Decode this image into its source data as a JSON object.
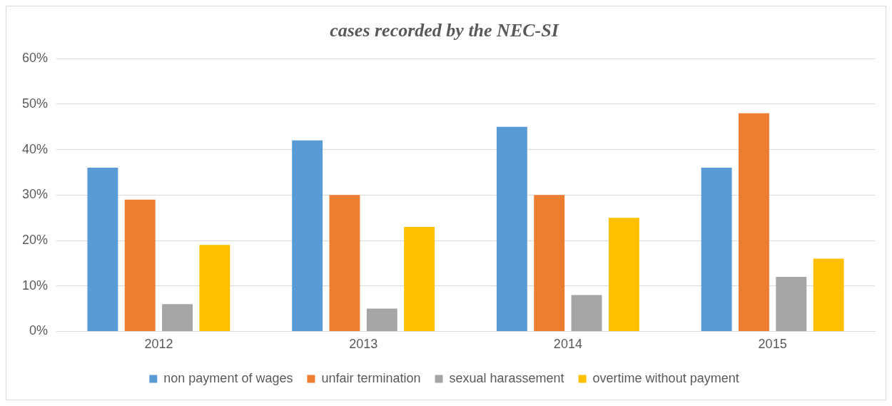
{
  "chart_data": {
    "type": "bar",
    "title": "cases recorded by the NEC-SI",
    "categories": [
      "2012",
      "2013",
      "2014",
      "2015"
    ],
    "series": [
      {
        "name": "non payment of wages",
        "color": "#5b9bd5",
        "values": [
          36,
          42,
          45,
          36
        ]
      },
      {
        "name": "unfair termination",
        "color": "#ed7d31",
        "values": [
          29,
          30,
          30,
          48
        ]
      },
      {
        "name": "sexual harassement",
        "color": "#a5a5a5",
        "values": [
          6,
          5,
          8,
          12
        ]
      },
      {
        "name": "overtime without payment",
        "color": "#ffc000",
        "values": [
          19,
          23,
          25,
          16
        ]
      }
    ],
    "ylim": [
      0,
      60
    ],
    "yticks": [
      {
        "value": 0,
        "label": "0%"
      },
      {
        "value": 10,
        "label": "10%"
      },
      {
        "value": 20,
        "label": "20%"
      },
      {
        "value": 30,
        "label": "30%"
      },
      {
        "value": 40,
        "label": "40%"
      },
      {
        "value": 50,
        "label": "50%"
      },
      {
        "value": 60,
        "label": "60%"
      }
    ],
    "grid": "y",
    "legend": "bottom"
  }
}
